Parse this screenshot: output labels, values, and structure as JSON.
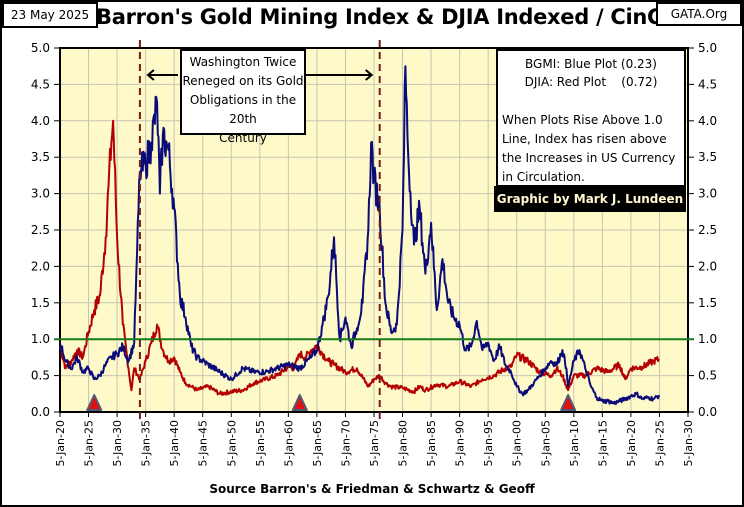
{
  "header": {
    "date": "23 May 2025",
    "site": "GATA.Org",
    "title": "Barron's Gold Mining Index & DJIA Indexed / CinC"
  },
  "annotations": {
    "washington_lines": [
      "Washington Twice",
      "Reneged on its Gold",
      "Obligations in the 20th",
      "Century"
    ],
    "legend_bgmi": "BGMI:  Blue Plot (0.23)",
    "legend_djia": "DJIA: Red Plot    (0.72)",
    "note_lines": [
      "When Plots Rise Above 1.0",
      "Line, Index has risen above",
      "the Increases in US Currency",
      "in Circulation."
    ],
    "credit": "Graphic by Mark J. Lundeen"
  },
  "colors": {
    "background": "#fdf9c8",
    "bgmi": "#0a0a78",
    "djia": "#b40000",
    "reference_line": "#1a7a1a",
    "dashed_marker": "#7a1a1a",
    "triangle_fill": "#e01010",
    "triangle_edge": "#505a78",
    "grid": "#c8c4b4"
  },
  "chart_data": {
    "type": "line",
    "title": "Barron's Gold Mining Index & DJIA Indexed / CinC",
    "xlabel": "Source Barron's & Friedman & Schwartz & Geoff",
    "ylabel": "",
    "xlim": [
      1920,
      2030
    ],
    "ylim": [
      0,
      5
    ],
    "grid": true,
    "x_ticks": [
      "5-Jan-20",
      "5-Jan-25",
      "5-Jan-30",
      "5-Jan-35",
      "5-Jan-40",
      "5-Jan-45",
      "5-Jan-50",
      "5-Jan-55",
      "5-Jan-60",
      "5-Jan-65",
      "5-Jan-70",
      "5-Jan-75",
      "5-Jan-80",
      "5-Jan-85",
      "5-Jan-90",
      "5-Jan-95",
      "5-Jan-00",
      "5-Jan-05",
      "5-Jan-10",
      "5-Jan-15",
      "5-Jan-20",
      "5-Jan-25",
      "5-Jan-30"
    ],
    "y_ticks": [
      "0.0",
      "0.5",
      "1.0",
      "1.5",
      "2.0",
      "2.5",
      "3.0",
      "3.5",
      "4.0",
      "4.5",
      "5.0"
    ],
    "reference_line": 1.0,
    "vertical_markers": [
      1934,
      1976
    ],
    "triangle_markers": [
      1926,
      1962,
      2009
    ],
    "series": [
      {
        "name": "BGMI",
        "label": "Blue Plot",
        "latest": 0.23,
        "x": [
          1920,
          1921,
          1922,
          1923,
          1924,
          1925,
          1926,
          1927,
          1928,
          1929,
          1930,
          1931,
          1932,
          1933,
          1933.5,
          1934,
          1935,
          1936,
          1937,
          1937.5,
          1938,
          1939,
          1940,
          1941,
          1942,
          1943,
          1944,
          1945,
          1946,
          1948,
          1950,
          1952,
          1954,
          1956,
          1958,
          1960,
          1962,
          1964,
          1965,
          1966,
          1967,
          1968,
          1969,
          1970,
          1971,
          1972,
          1973,
          1974,
          1974.5,
          1975,
          1976,
          1977,
          1978,
          1979,
          1980,
          1980.5,
          1981,
          1982,
          1983,
          1984,
          1985,
          1986,
          1987,
          1988,
          1989,
          1990,
          1991,
          1992,
          1993,
          1994,
          1995,
          1996,
          1997,
          1998,
          1999,
          2000,
          2001,
          2002,
          2003,
          2004,
          2005,
          2006,
          2007,
          2008,
          2008.7,
          2009,
          2010,
          2011,
          2012,
          2013,
          2014,
          2015,
          2016,
          2017,
          2018,
          2019,
          2020,
          2021,
          2022,
          2023,
          2024,
          2025
        ],
        "y": [
          0.95,
          0.7,
          0.6,
          0.75,
          0.55,
          0.6,
          0.45,
          0.5,
          0.65,
          0.75,
          0.8,
          0.9,
          0.7,
          0.95,
          2.2,
          3.3,
          3.4,
          3.7,
          4.25,
          3.0,
          3.8,
          3.6,
          2.8,
          1.6,
          1.3,
          0.9,
          0.75,
          0.7,
          0.65,
          0.55,
          0.45,
          0.6,
          0.55,
          0.55,
          0.6,
          0.65,
          0.6,
          0.75,
          0.85,
          1.2,
          1.6,
          2.4,
          1.0,
          1.3,
          0.9,
          1.15,
          1.5,
          2.5,
          3.7,
          3.2,
          2.8,
          1.5,
          1.1,
          1.2,
          2.5,
          4.75,
          3.5,
          2.3,
          2.8,
          1.9,
          2.6,
          1.4,
          2.1,
          1.5,
          1.3,
          1.2,
          0.85,
          0.9,
          1.25,
          0.85,
          0.95,
          0.7,
          0.9,
          0.65,
          0.55,
          0.35,
          0.25,
          0.3,
          0.4,
          0.5,
          0.6,
          0.7,
          0.65,
          0.85,
          0.6,
          0.35,
          0.7,
          0.85,
          0.6,
          0.35,
          0.2,
          0.15,
          0.15,
          0.12,
          0.15,
          0.18,
          0.22,
          0.25,
          0.18,
          0.2,
          0.18,
          0.23
        ]
      },
      {
        "name": "DJIA",
        "label": "Red Plot",
        "latest": 0.72,
        "x": [
          1920,
          1921,
          1922,
          1923,
          1924,
          1925,
          1926,
          1927,
          1928,
          1928.5,
          1929,
          1929.3,
          1930,
          1931,
          1932,
          1932.5,
          1933,
          1934,
          1935,
          1936,
          1937,
          1938,
          1939,
          1940,
          1941,
          1942,
          1943,
          1944,
          1946,
          1948,
          1950,
          1952,
          1954,
          1956,
          1958,
          1960,
          1961,
          1962,
          1963,
          1964,
          1965,
          1966,
          1967,
          1968,
          1970,
          1972,
          1974,
          1975,
          1976,
          1977,
          1978,
          1980,
          1982,
          1983,
          1984,
          1986,
          1988,
          1990,
          1992,
          1994,
          1996,
          1998,
          1999,
          2000,
          2002,
          2004,
          2006,
          2007,
          2008,
          2009,
          2010,
          2012,
          2014,
          2016,
          2018,
          2019,
          2020,
          2022,
          2024,
          2025
        ],
        "y": [
          0.9,
          0.6,
          0.7,
          0.85,
          0.75,
          1.1,
          1.4,
          1.6,
          2.4,
          3.1,
          3.7,
          4.0,
          2.4,
          1.2,
          0.6,
          0.3,
          0.6,
          0.45,
          0.7,
          0.95,
          1.2,
          0.85,
          0.7,
          0.75,
          0.55,
          0.4,
          0.35,
          0.3,
          0.35,
          0.25,
          0.28,
          0.3,
          0.4,
          0.45,
          0.5,
          0.62,
          0.6,
          0.8,
          0.75,
          0.85,
          0.92,
          0.8,
          0.7,
          0.65,
          0.55,
          0.6,
          0.35,
          0.45,
          0.5,
          0.4,
          0.35,
          0.33,
          0.28,
          0.35,
          0.3,
          0.38,
          0.35,
          0.42,
          0.35,
          0.45,
          0.5,
          0.6,
          0.62,
          0.78,
          0.7,
          0.55,
          0.5,
          0.6,
          0.5,
          0.3,
          0.5,
          0.5,
          0.6,
          0.55,
          0.65,
          0.45,
          0.6,
          0.62,
          0.7,
          0.72
        ]
      }
    ]
  }
}
